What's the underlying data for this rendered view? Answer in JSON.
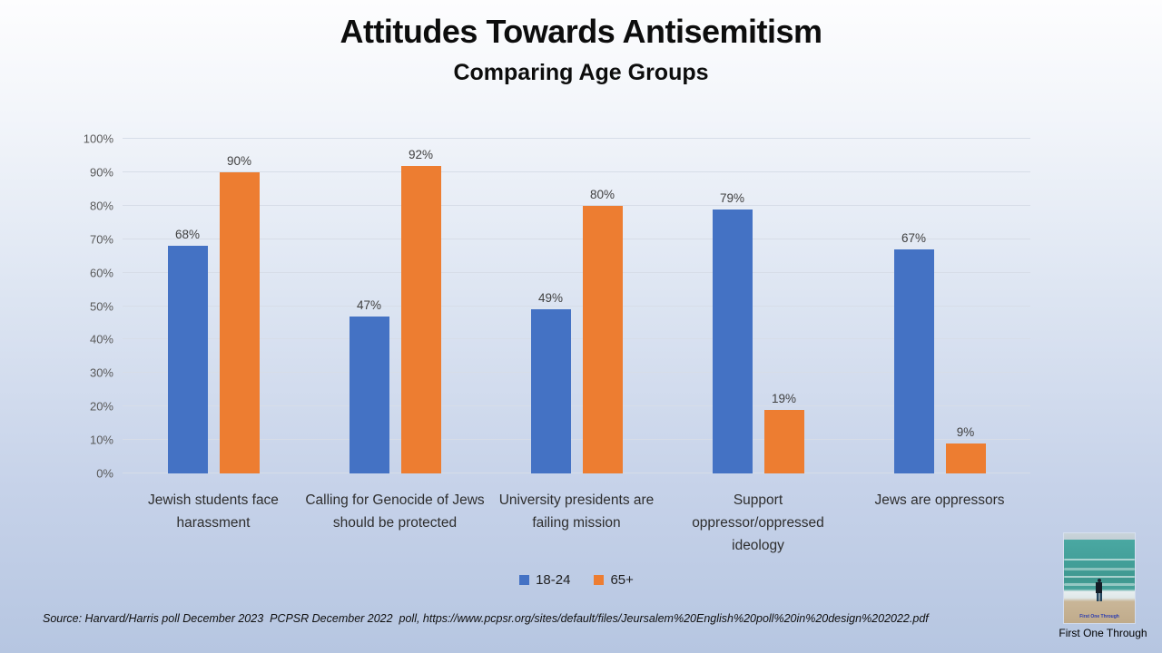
{
  "title": "Attitudes Towards Antisemitism",
  "subtitle": "Comparing Age Groups",
  "chart_data": {
    "type": "bar",
    "categories": [
      "Jewish students face harassment",
      "Calling for Genocide of Jews should be protected",
      "University presidents are failing mission",
      "Support oppressor/oppressed ideology",
      "Jews are oppressors"
    ],
    "series": [
      {
        "name": "18-24",
        "color": "#4472C4",
        "values": [
          68,
          47,
          49,
          79,
          67
        ]
      },
      {
        "name": "65+",
        "color": "#ED7D31",
        "values": [
          90,
          92,
          80,
          19,
          9
        ]
      }
    ],
    "value_suffix": "%",
    "yticks": [
      "0%",
      "10%",
      "20%",
      "30%",
      "40%",
      "50%",
      "60%",
      "70%",
      "80%",
      "90%",
      "100%"
    ],
    "ylim": [
      0,
      100
    ],
    "grid": "horizontal",
    "legend_position": "bottom"
  },
  "source": "Source: Harvard/Harris poll December 2023  PCPSR December 2022  poll, https://www.pcpsr.org/sites/default/files/Jeursalem%20English%20poll%20in%20design%202022.pdf",
  "logo": {
    "caption": "First One Through",
    "watermark": "First One Through"
  }
}
